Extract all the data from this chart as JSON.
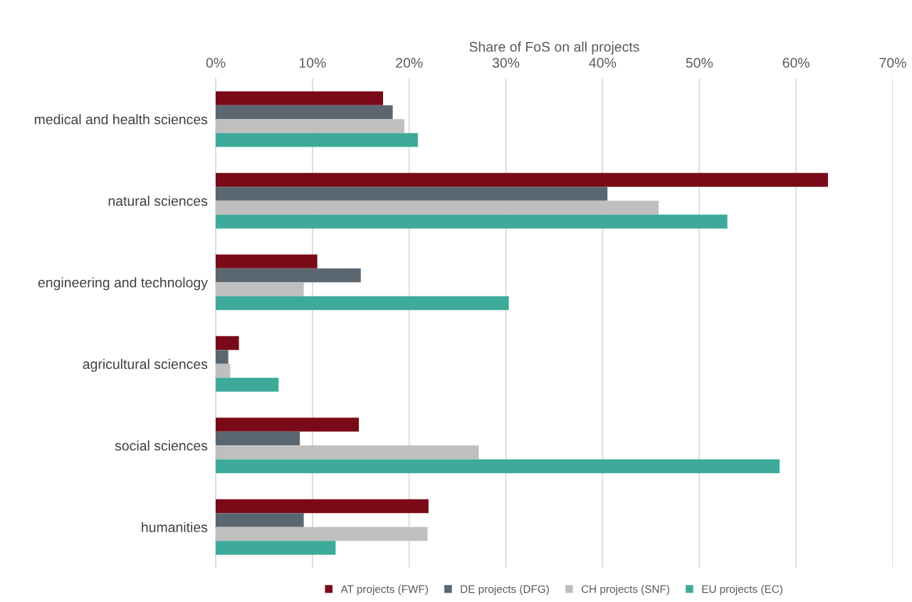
{
  "chart_data": {
    "type": "bar",
    "orientation": "horizontal",
    "xlabel": "Share of FoS on all projects",
    "categories": [
      "medical and health sciences",
      "natural sciences",
      "engineering and technology",
      "agricultural sciences",
      "social sciences",
      "humanities"
    ],
    "series": [
      {
        "name": "AT projects (FWF)",
        "color": "#7a0a17",
        "values": [
          0.173,
          0.633,
          0.105,
          0.024,
          0.148,
          0.22
        ]
      },
      {
        "name": "DE projects (DFG)",
        "color": "#5b6770",
        "values": [
          0.183,
          0.405,
          0.15,
          0.013,
          0.087,
          0.091
        ]
      },
      {
        "name": "CH projects (SNF)",
        "color": "#bfbfbf",
        "values": [
          0.195,
          0.458,
          0.091,
          0.015,
          0.272,
          0.219
        ]
      },
      {
        "name": "EU projects (EC)",
        "color": "#3eab9a",
        "values": [
          0.209,
          0.529,
          0.303,
          0.065,
          0.583,
          0.124
        ]
      }
    ],
    "xlim": [
      0,
      0.7
    ],
    "xticks": [
      {
        "value": 0,
        "label": "0%"
      },
      {
        "value": 0.1,
        "label": "10%"
      },
      {
        "value": 0.2,
        "label": "20%"
      },
      {
        "value": 0.3,
        "label": "30%"
      },
      {
        "value": 0.4,
        "label": "40%"
      },
      {
        "value": 0.5,
        "label": "50%"
      },
      {
        "value": 0.6,
        "label": "60%"
      },
      {
        "value": 0.7,
        "label": "70%"
      }
    ],
    "grid": "x",
    "legend": "bottom"
  }
}
